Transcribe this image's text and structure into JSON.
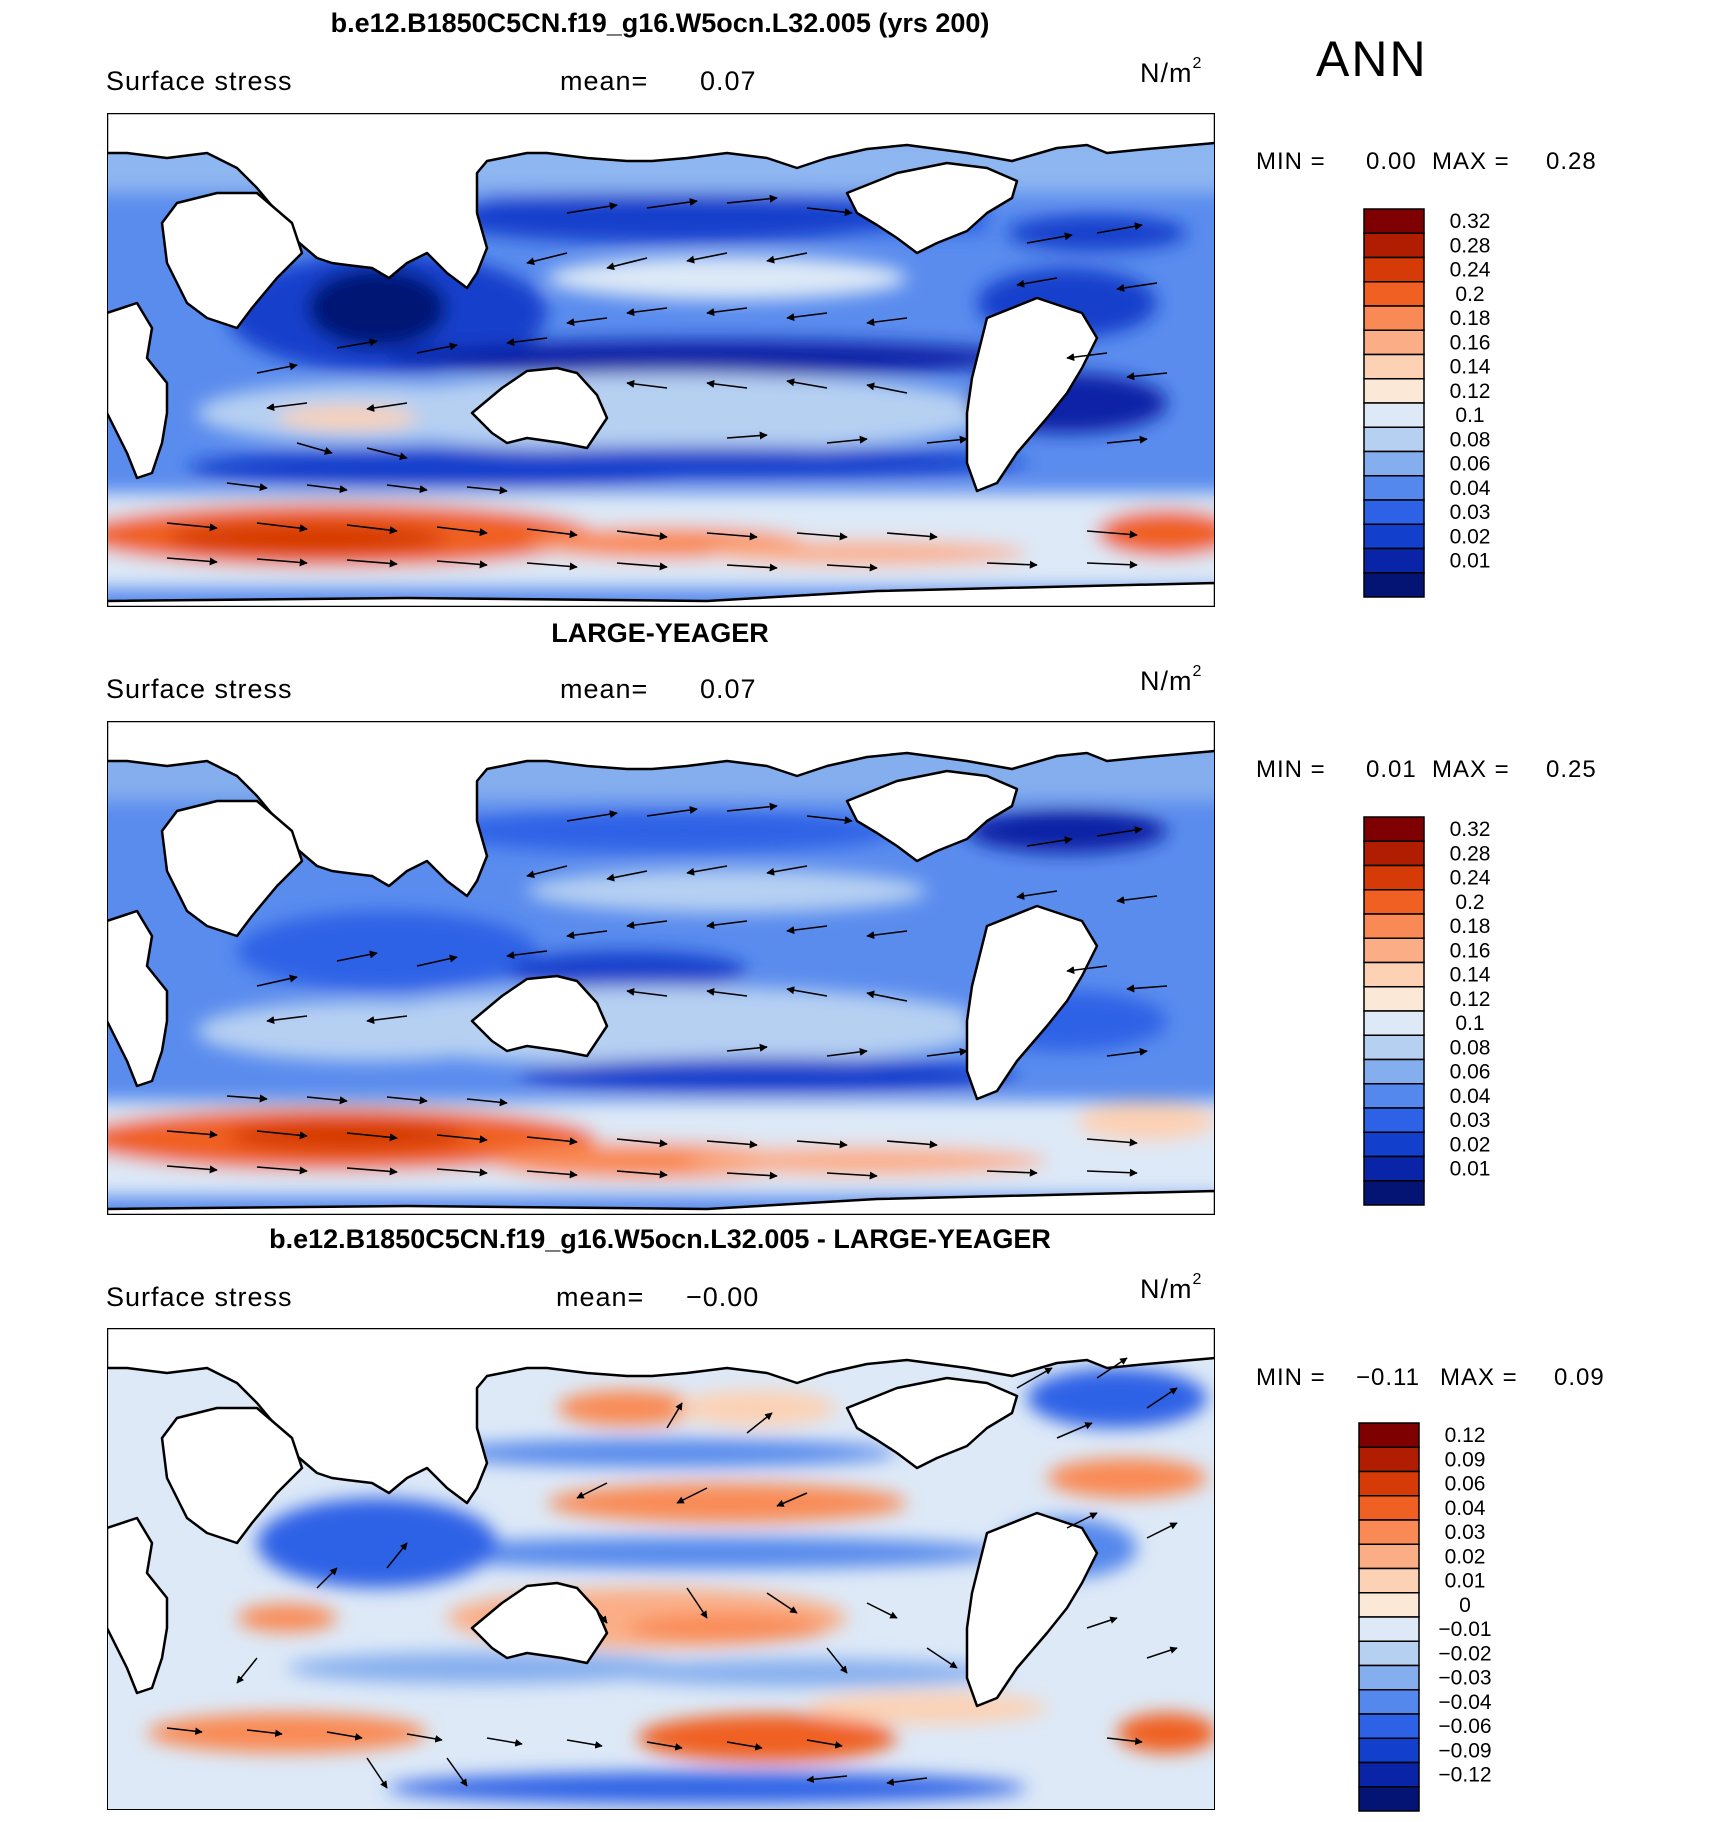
{
  "season": "ANN",
  "panels": [
    {
      "title": "b.e12.B1850C5CN.f19_g16.W5ocn.L32.005 (yrs 200)",
      "variable": "Surface stress",
      "mean_label": "mean=",
      "mean_value": "0.07",
      "units": "N/m",
      "units_sup": "2",
      "min_label": "MIN =",
      "min_value": "0.00",
      "max_label": "MAX =",
      "max_value": "0.28",
      "colorbar": {
        "ticks": [
          "0.32",
          "0.28",
          "0.24",
          "0.2",
          "0.18",
          "0.16",
          "0.14",
          "0.12",
          "0.1",
          "0.08",
          "0.06",
          "0.04",
          "0.03",
          "0.02",
          "0.01"
        ],
        "colors": [
          "#7f0000",
          "#b01d00",
          "#d63a06",
          "#f06022",
          "#f98a55",
          "#fbae86",
          "#fcd1b4",
          "#fbe8d6",
          "#dde9f7",
          "#b6d0f2",
          "#85aeee",
          "#5588ec",
          "#2d62e6",
          "#123fcc",
          "#0924a6",
          "#041475"
        ]
      }
    },
    {
      "title": "LARGE-YEAGER",
      "variable": "Surface stress",
      "mean_label": "mean=",
      "mean_value": "0.07",
      "units": "N/m",
      "units_sup": "2",
      "min_label": "MIN =",
      "min_value": "0.01",
      "max_label": "MAX =",
      "max_value": "0.25",
      "colorbar": {
        "ticks": [
          "0.32",
          "0.28",
          "0.24",
          "0.2",
          "0.18",
          "0.16",
          "0.14",
          "0.12",
          "0.1",
          "0.08",
          "0.06",
          "0.04",
          "0.03",
          "0.02",
          "0.01"
        ],
        "colors": [
          "#7f0000",
          "#b01d00",
          "#d63a06",
          "#f06022",
          "#f98a55",
          "#fbae86",
          "#fcd1b4",
          "#fbe8d6",
          "#dde9f7",
          "#b6d0f2",
          "#85aeee",
          "#5588ec",
          "#2d62e6",
          "#123fcc",
          "#0924a6",
          "#041475"
        ]
      }
    },
    {
      "title": "b.e12.B1850C5CN.f19_g16.W5ocn.L32.005 - LARGE-YEAGER",
      "variable": "Surface stress",
      "mean_label": "mean=",
      "mean_value": "−0.00",
      "units": "N/m",
      "units_sup": "2",
      "min_label": "MIN =",
      "min_value": "−0.11",
      "max_label": "MAX =",
      "max_value": "0.09",
      "colorbar": {
        "ticks": [
          "0.12",
          "0.09",
          "0.06",
          "0.04",
          "0.03",
          "0.02",
          "0.01",
          "0",
          "−0.01",
          "−0.02",
          "−0.03",
          "−0.04",
          "−0.06",
          "−0.09",
          "−0.12"
        ],
        "colors": [
          "#7f0000",
          "#b01d00",
          "#d63a06",
          "#f06022",
          "#f98a55",
          "#fbae86",
          "#fcd1b4",
          "#fbe8d6",
          "#dde9f7",
          "#b6d0f2",
          "#85aeee",
          "#5588ec",
          "#2d62e6",
          "#123fcc",
          "#0924a6",
          "#041475"
        ]
      }
    }
  ]
}
